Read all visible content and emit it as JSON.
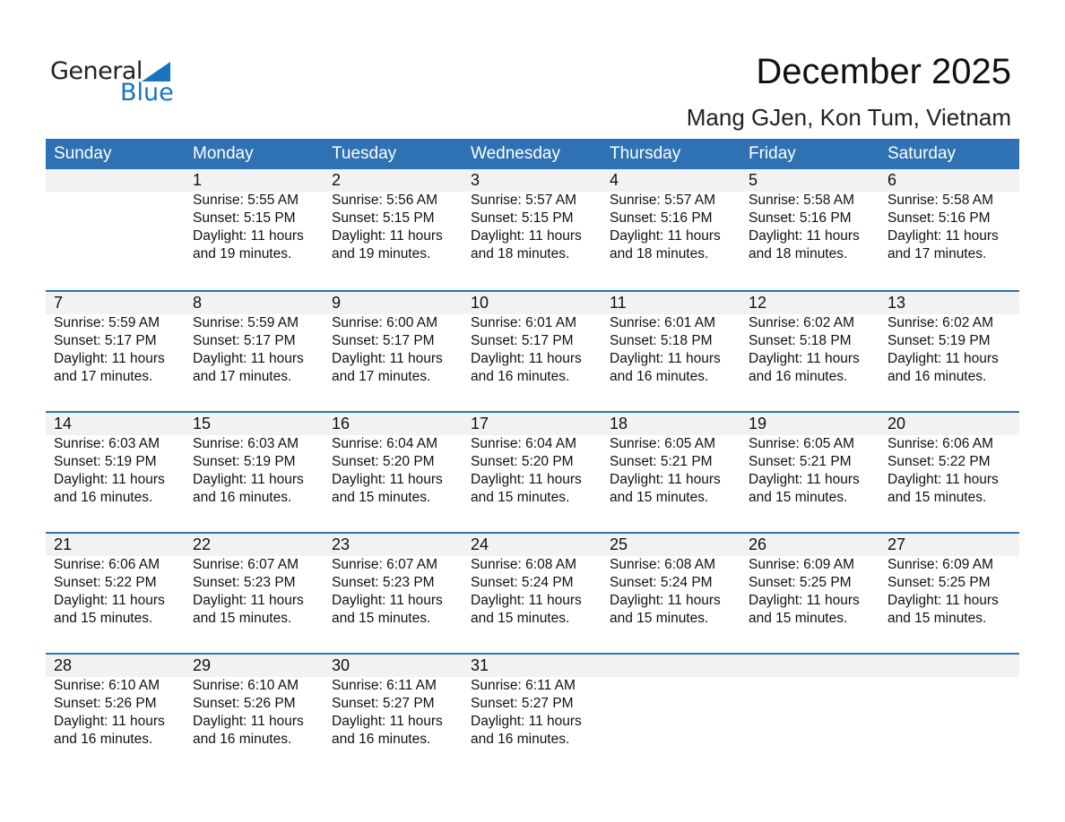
{
  "logo": {
    "text1": "General",
    "text2": "Blue"
  },
  "title": "December 2025",
  "location": "Mang GJen, Kon Tum, Vietnam",
  "colors": {
    "header": "#2e72b3",
    "date_band": "#f2f2f2",
    "logo_blue": "#1a73c0"
  },
  "weekdays": [
    "Sunday",
    "Monday",
    "Tuesday",
    "Wednesday",
    "Thursday",
    "Friday",
    "Saturday"
  ],
  "days": [
    {
      "d": "1",
      "rise": "Sunrise: 5:55 AM",
      "set": "Sunset: 5:15 PM",
      "dl": "Daylight: 11 hours",
      "min": "and 19 minutes."
    },
    {
      "d": "2",
      "rise": "Sunrise: 5:56 AM",
      "set": "Sunset: 5:15 PM",
      "dl": "Daylight: 11 hours",
      "min": "and 19 minutes."
    },
    {
      "d": "3",
      "rise": "Sunrise: 5:57 AM",
      "set": "Sunset: 5:15 PM",
      "dl": "Daylight: 11 hours",
      "min": "and 18 minutes."
    },
    {
      "d": "4",
      "rise": "Sunrise: 5:57 AM",
      "set": "Sunset: 5:16 PM",
      "dl": "Daylight: 11 hours",
      "min": "and 18 minutes."
    },
    {
      "d": "5",
      "rise": "Sunrise: 5:58 AM",
      "set": "Sunset: 5:16 PM",
      "dl": "Daylight: 11 hours",
      "min": "and 18 minutes."
    },
    {
      "d": "6",
      "rise": "Sunrise: 5:58 AM",
      "set": "Sunset: 5:16 PM",
      "dl": "Daylight: 11 hours",
      "min": "and 17 minutes."
    },
    {
      "d": "7",
      "rise": "Sunrise: 5:59 AM",
      "set": "Sunset: 5:17 PM",
      "dl": "Daylight: 11 hours",
      "min": "and 17 minutes."
    },
    {
      "d": "8",
      "rise": "Sunrise: 5:59 AM",
      "set": "Sunset: 5:17 PM",
      "dl": "Daylight: 11 hours",
      "min": "and 17 minutes."
    },
    {
      "d": "9",
      "rise": "Sunrise: 6:00 AM",
      "set": "Sunset: 5:17 PM",
      "dl": "Daylight: 11 hours",
      "min": "and 17 minutes."
    },
    {
      "d": "10",
      "rise": "Sunrise: 6:01 AM",
      "set": "Sunset: 5:17 PM",
      "dl": "Daylight: 11 hours",
      "min": "and 16 minutes."
    },
    {
      "d": "11",
      "rise": "Sunrise: 6:01 AM",
      "set": "Sunset: 5:18 PM",
      "dl": "Daylight: 11 hours",
      "min": "and 16 minutes."
    },
    {
      "d": "12",
      "rise": "Sunrise: 6:02 AM",
      "set": "Sunset: 5:18 PM",
      "dl": "Daylight: 11 hours",
      "min": "and 16 minutes."
    },
    {
      "d": "13",
      "rise": "Sunrise: 6:02 AM",
      "set": "Sunset: 5:19 PM",
      "dl": "Daylight: 11 hours",
      "min": "and 16 minutes."
    },
    {
      "d": "14",
      "rise": "Sunrise: 6:03 AM",
      "set": "Sunset: 5:19 PM",
      "dl": "Daylight: 11 hours",
      "min": "and 16 minutes."
    },
    {
      "d": "15",
      "rise": "Sunrise: 6:03 AM",
      "set": "Sunset: 5:19 PM",
      "dl": "Daylight: 11 hours",
      "min": "and 16 minutes."
    },
    {
      "d": "16",
      "rise": "Sunrise: 6:04 AM",
      "set": "Sunset: 5:20 PM",
      "dl": "Daylight: 11 hours",
      "min": "and 15 minutes."
    },
    {
      "d": "17",
      "rise": "Sunrise: 6:04 AM",
      "set": "Sunset: 5:20 PM",
      "dl": "Daylight: 11 hours",
      "min": "and 15 minutes."
    },
    {
      "d": "18",
      "rise": "Sunrise: 6:05 AM",
      "set": "Sunset: 5:21 PM",
      "dl": "Daylight: 11 hours",
      "min": "and 15 minutes."
    },
    {
      "d": "19",
      "rise": "Sunrise: 6:05 AM",
      "set": "Sunset: 5:21 PM",
      "dl": "Daylight: 11 hours",
      "min": "and 15 minutes."
    },
    {
      "d": "20",
      "rise": "Sunrise: 6:06 AM",
      "set": "Sunset: 5:22 PM",
      "dl": "Daylight: 11 hours",
      "min": "and 15 minutes."
    },
    {
      "d": "21",
      "rise": "Sunrise: 6:06 AM",
      "set": "Sunset: 5:22 PM",
      "dl": "Daylight: 11 hours",
      "min": "and 15 minutes."
    },
    {
      "d": "22",
      "rise": "Sunrise: 6:07 AM",
      "set": "Sunset: 5:23 PM",
      "dl": "Daylight: 11 hours",
      "min": "and 15 minutes."
    },
    {
      "d": "23",
      "rise": "Sunrise: 6:07 AM",
      "set": "Sunset: 5:23 PM",
      "dl": "Daylight: 11 hours",
      "min": "and 15 minutes."
    },
    {
      "d": "24",
      "rise": "Sunrise: 6:08 AM",
      "set": "Sunset: 5:24 PM",
      "dl": "Daylight: 11 hours",
      "min": "and 15 minutes."
    },
    {
      "d": "25",
      "rise": "Sunrise: 6:08 AM",
      "set": "Sunset: 5:24 PM",
      "dl": "Daylight: 11 hours",
      "min": "and 15 minutes."
    },
    {
      "d": "26",
      "rise": "Sunrise: 6:09 AM",
      "set": "Sunset: 5:25 PM",
      "dl": "Daylight: 11 hours",
      "min": "and 15 minutes."
    },
    {
      "d": "27",
      "rise": "Sunrise: 6:09 AM",
      "set": "Sunset: 5:25 PM",
      "dl": "Daylight: 11 hours",
      "min": "and 15 minutes."
    },
    {
      "d": "28",
      "rise": "Sunrise: 6:10 AM",
      "set": "Sunset: 5:26 PM",
      "dl": "Daylight: 11 hours",
      "min": "and 16 minutes."
    },
    {
      "d": "29",
      "rise": "Sunrise: 6:10 AM",
      "set": "Sunset: 5:26 PM",
      "dl": "Daylight: 11 hours",
      "min": "and 16 minutes."
    },
    {
      "d": "30",
      "rise": "Sunrise: 6:11 AM",
      "set": "Sunset: 5:27 PM",
      "dl": "Daylight: 11 hours",
      "min": "and 16 minutes."
    },
    {
      "d": "31",
      "rise": "Sunrise: 6:11 AM",
      "set": "Sunset: 5:27 PM",
      "dl": "Daylight: 11 hours",
      "min": "and 16 minutes."
    }
  ]
}
